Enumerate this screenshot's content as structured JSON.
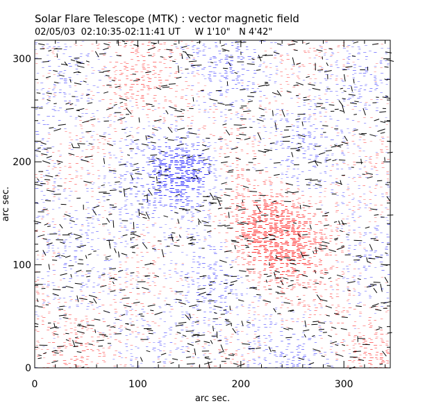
{
  "header": {
    "title": "Solar Flare Telescope (MTK) : vector magnetic field",
    "subtitle": "02/05/03  02:10:35-02:11:41 UT     W 1'10\"   N 4'42\""
  },
  "axes": {
    "xlabel": "arc sec.",
    "ylabel": "arc sec.",
    "xlim": [
      0,
      345
    ],
    "ylim": [
      0,
      318
    ],
    "x_ticks": [
      "0",
      "100",
      "200",
      "300"
    ],
    "y_ticks": [
      "0",
      "100",
      "200",
      "300"
    ]
  },
  "colors": {
    "positive_polarity": "#ff2a2a",
    "negative_polarity": "#2a2aff",
    "transverse_field_vectors": "#000000",
    "frame": "#000000"
  },
  "map_features": {
    "negative_spot_center": [
      145,
      190
    ],
    "positive_spot_center": [
      230,
      130
    ]
  }
}
